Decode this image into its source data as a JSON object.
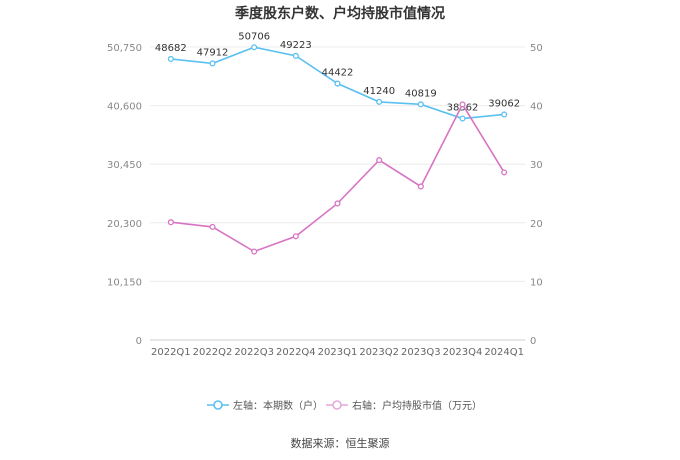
{
  "chart_data": {
    "type": "line",
    "title": "季度股东户数、户均持股市值情况",
    "categories": [
      "2022Q1",
      "2022Q2",
      "2022Q3",
      "2022Q4",
      "2023Q1",
      "2023Q2",
      "2023Q3",
      "2023Q4",
      "2024Q1"
    ],
    "left_axis": {
      "ticks": [
        "0",
        "10,150",
        "20,300",
        "30,450",
        "40,600",
        "50,750"
      ],
      "ylim": [
        0,
        50750
      ]
    },
    "right_axis": {
      "ticks": [
        "0",
        "10",
        "20",
        "30",
        "40",
        "50"
      ],
      "ylim": [
        0,
        50
      ]
    },
    "series": [
      {
        "name": "左轴：本期数（户）",
        "axis": "left",
        "color": "#5bc0f0",
        "values": [
          48682,
          47912,
          50706,
          49223,
          44422,
          41240,
          40819,
          38362,
          39062
        ],
        "labels": [
          "48682",
          "47912",
          "50706",
          "49223",
          "44422",
          "41240",
          "40819",
          "38362",
          "39062"
        ]
      },
      {
        "name": "右轴：户均持股市值（万元）",
        "axis": "right",
        "color": "#d774c4",
        "values": [
          20.1,
          19.3,
          15.1,
          17.7,
          23.3,
          30.7,
          26.2,
          40.2,
          28.6
        ]
      }
    ],
    "grid": true,
    "legend_position": "bottom"
  },
  "source": "数据来源：恒生聚源"
}
